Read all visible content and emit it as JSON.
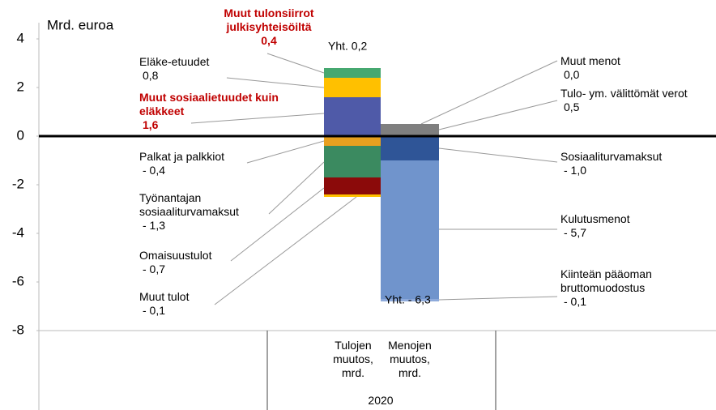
{
  "chart_data": {
    "type": "stacked_bar",
    "ylabel": "Mrd. euroa",
    "categories": [
      "Tulojen\nmuutos,\nmrd.",
      "Menojen\nmuutos,\nmrd."
    ],
    "group_label": "2020",
    "ylim": [
      -8,
      4
    ],
    "yticks": [
      -8,
      -6,
      -4,
      -2,
      0,
      2,
      4
    ],
    "totals": [
      0.2,
      -6.3
    ],
    "total_labels": [
      "Yht.  0,2",
      "Yht. - 6,3"
    ],
    "series": [
      {
        "name": "Muut sosiaalietuudet kuin\neläkkeet",
        "color": "#4f5aa8",
        "label_color": "#c00000",
        "values": [
          1.6,
          null
        ],
        "value_labels": [
          "1,6",
          null
        ]
      },
      {
        "name": "Eläke-etuudet",
        "color": "#ffc000",
        "label_color": "#000000",
        "values": [
          0.8,
          null
        ],
        "value_labels": [
          "0,8",
          null
        ]
      },
      {
        "name": "Muut tulonsiirrot\njulkisyhteisöiltä",
        "color": "#46a870",
        "label_color": "#c00000",
        "values": [
          0.4,
          null
        ],
        "value_labels": [
          "0,4",
          null
        ]
      },
      {
        "name": "Palkat ja palkkiot",
        "color": "#e8a020",
        "label_color": "#000000",
        "values": [
          -0.4,
          null
        ],
        "value_labels": [
          "- 0,4",
          null
        ]
      },
      {
        "name": "Työnantajan\nsosiaaliturvamaksut",
        "color": "#3b8a60",
        "label_color": "#000000",
        "values": [
          -1.3,
          null
        ],
        "value_labels": [
          "- 1,3",
          null
        ]
      },
      {
        "name": "Omaisuustulot",
        "color": "#8b0a0a",
        "label_color": "#000000",
        "values": [
          -0.7,
          null
        ],
        "value_labels": [
          "- 0,7",
          null
        ]
      },
      {
        "name": "Muut tulot",
        "color": "#ffc000",
        "label_color": "#000000",
        "values": [
          -0.1,
          null
        ],
        "value_labels": [
          "- 0,1",
          null
        ]
      },
      {
        "name": "Muut menot",
        "color": "#a0a0a0",
        "label_color": "#000000",
        "values": [
          null,
          0.0
        ],
        "value_labels": [
          null,
          "0,0"
        ]
      },
      {
        "name": "Tulo- ym. välittömät verot",
        "color": "#7f7f7f",
        "label_color": "#000000",
        "values": [
          null,
          0.5
        ],
        "value_labels": [
          null,
          "0,5"
        ]
      },
      {
        "name": "Sosiaaliturvamaksut",
        "color": "#2f5597",
        "label_color": "#000000",
        "values": [
          null,
          -1.0
        ],
        "value_labels": [
          null,
          "- 1,0"
        ]
      },
      {
        "name": "Kulutusmenot",
        "color": "#7094cc",
        "label_color": "#000000",
        "values": [
          null,
          -5.7
        ],
        "value_labels": [
          null,
          "- 5,7"
        ]
      },
      {
        "name": "Kiinteän pääoman\nbruttomuodostus",
        "color": "#8eaadb",
        "label_color": "#000000",
        "values": [
          null,
          -0.1
        ],
        "value_labels": [
          null,
          "- 0,1"
        ]
      }
    ]
  }
}
